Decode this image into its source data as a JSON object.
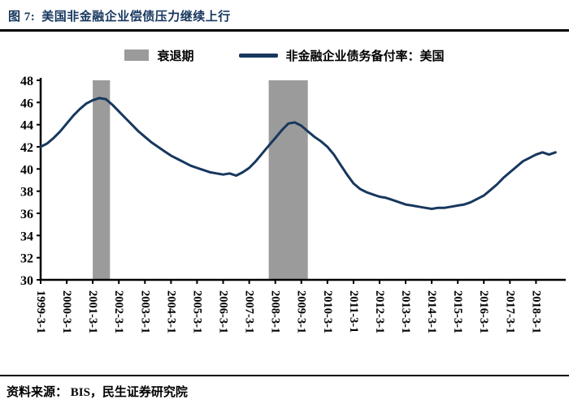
{
  "figure": {
    "title_prefix": "图 7:",
    "title": "美国非金融企业偿债压力继续上行",
    "source": "资料来源： BIS，民生证券研究院"
  },
  "legend": {
    "recession_label": "衰退期",
    "series_label": "非金融企业债务备付率：美国"
  },
  "colors": {
    "line": "#17375E",
    "band": "#9B9B9B",
    "title": "#17375E",
    "axis": "#000000"
  },
  "chart_data": {
    "type": "line",
    "title": "美国非金融企业偿债压力继续上行",
    "ylabel": "",
    "xlabel": "",
    "ylim": [
      30,
      48
    ],
    "ytick_step": 2,
    "grid": false,
    "legend_position": "top",
    "xlim": [
      1999.17,
      2019.0
    ],
    "x_tick_labels": [
      "1999-3-1",
      "2000-3-1",
      "2001-3-1",
      "2002-3-1",
      "2003-3-1",
      "2004-3-1",
      "2005-3-1",
      "2006-3-1",
      "2007-3-1",
      "2008-3-1",
      "2009-3-1",
      "2010-3-1",
      "2011-3-1",
      "2012-3-1",
      "2013-3-1",
      "2014-3-1",
      "2015-3-1",
      "2016-3-1",
      "2017-3-1",
      "2018-3-1"
    ],
    "recession_bands": [
      {
        "label": "衰退期",
        "from": 2001.17,
        "to": 2001.83
      },
      {
        "label": "衰退期",
        "from": 2007.92,
        "to": 2009.42
      }
    ],
    "series": [
      {
        "name": "非金融企业债务备付率：美国",
        "color": "#17375E",
        "x_start": 1999.17,
        "x_step": 0.25,
        "values": [
          42.0,
          42.3,
          42.8,
          43.4,
          44.1,
          44.8,
          45.4,
          45.9,
          46.2,
          46.4,
          46.3,
          45.8,
          45.2,
          44.6,
          44.0,
          43.4,
          42.9,
          42.4,
          42.0,
          41.6,
          41.2,
          40.9,
          40.6,
          40.3,
          40.1,
          39.9,
          39.7,
          39.6,
          39.5,
          39.6,
          39.4,
          39.7,
          40.1,
          40.7,
          41.4,
          42.1,
          42.8,
          43.5,
          44.1,
          44.2,
          43.9,
          43.4,
          42.9,
          42.5,
          42.0,
          41.3,
          40.4,
          39.5,
          38.7,
          38.2,
          37.9,
          37.7,
          37.5,
          37.4,
          37.2,
          37.0,
          36.8,
          36.7,
          36.6,
          36.5,
          36.4,
          36.5,
          36.5,
          36.6,
          36.7,
          36.8,
          37.0,
          37.3,
          37.6,
          38.1,
          38.6,
          39.2,
          39.7,
          40.2,
          40.7,
          41.0,
          41.3,
          41.5,
          41.3,
          41.5
        ]
      }
    ]
  }
}
